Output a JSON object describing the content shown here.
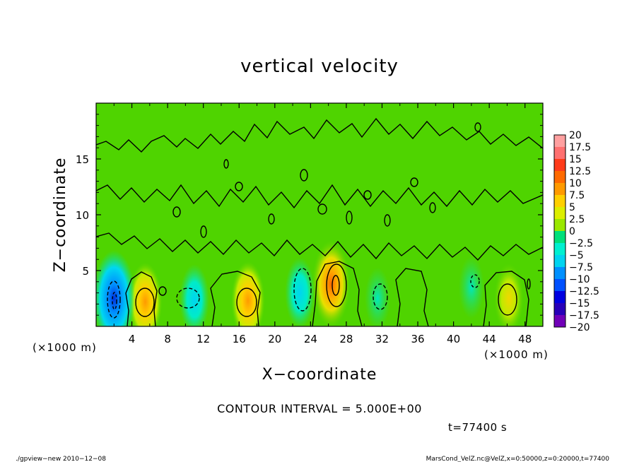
{
  "chart_data": {
    "type": "heatmap",
    "title": "vertical velocity",
    "xlabel": "X−coordinate",
    "ylabel": "Z−coordinate",
    "x_unit": "(×1000 m)",
    "y_unit": "(×1000 m)",
    "xlim": [
      0,
      50
    ],
    "ylim": [
      0,
      20
    ],
    "x_ticks": [
      "4",
      "8",
      "12",
      "16",
      "20",
      "24",
      "28",
      "32",
      "36",
      "40",
      "44",
      "48"
    ],
    "y_ticks": [
      "5",
      "10",
      "15"
    ],
    "contour_interval_label": "CONTOUR INTERVAL = 5.000E+00",
    "time_label": "t=77400  s",
    "colorbar": {
      "levels": [
        "20",
        "17.5",
        "15",
        "12.5",
        "10",
        "7.5",
        "5",
        "2.5",
        "0",
        "−2.5",
        "−5",
        "−7.5",
        "−10",
        "−12.5",
        "−15",
        "−17.5",
        "−20"
      ],
      "colors": [
        "#ffa0a0",
        "#ff7070",
        "#ff3b1a",
        "#ff6a00",
        "#ff9a00",
        "#ffd000",
        "#dcee00",
        "#9ae800",
        "#2fd400",
        "#00e07a",
        "#00f0d0",
        "#00d4f0",
        "#0090ff",
        "#0050ff",
        "#0000e0",
        "#2800b8",
        "#7000b8"
      ]
    },
    "features": [
      {
        "kind": "updraft",
        "x": 5.5,
        "z": 2.2,
        "peak": 10
      },
      {
        "kind": "updraft",
        "x": 17,
        "z": 2.3,
        "peak": 10
      },
      {
        "kind": "updraft",
        "x": 26.3,
        "z": 3.8,
        "peak": 12.5
      },
      {
        "kind": "updraft",
        "x": 46.2,
        "z": 2.5,
        "peak": 7.5
      },
      {
        "kind": "downdraft",
        "x": 2,
        "z": 2.5,
        "peak": -15
      },
      {
        "kind": "downdraft",
        "x": 11,
        "z": 2.4,
        "peak": -7.5
      },
      {
        "kind": "downdraft",
        "x": 22.8,
        "z": 3,
        "peak": -7.5
      },
      {
        "kind": "downdraft",
        "x": 31.5,
        "z": 2.5,
        "peak": -5
      },
      {
        "kind": "downdraft",
        "x": 42,
        "z": 3.5,
        "peak": -5
      }
    ]
  },
  "footer": {
    "left": "./gpview−new   2010−12−08",
    "right": "MarsCond_VelZ.nc@VelZ,x=0:50000,z=0:20000,t=77400"
  }
}
